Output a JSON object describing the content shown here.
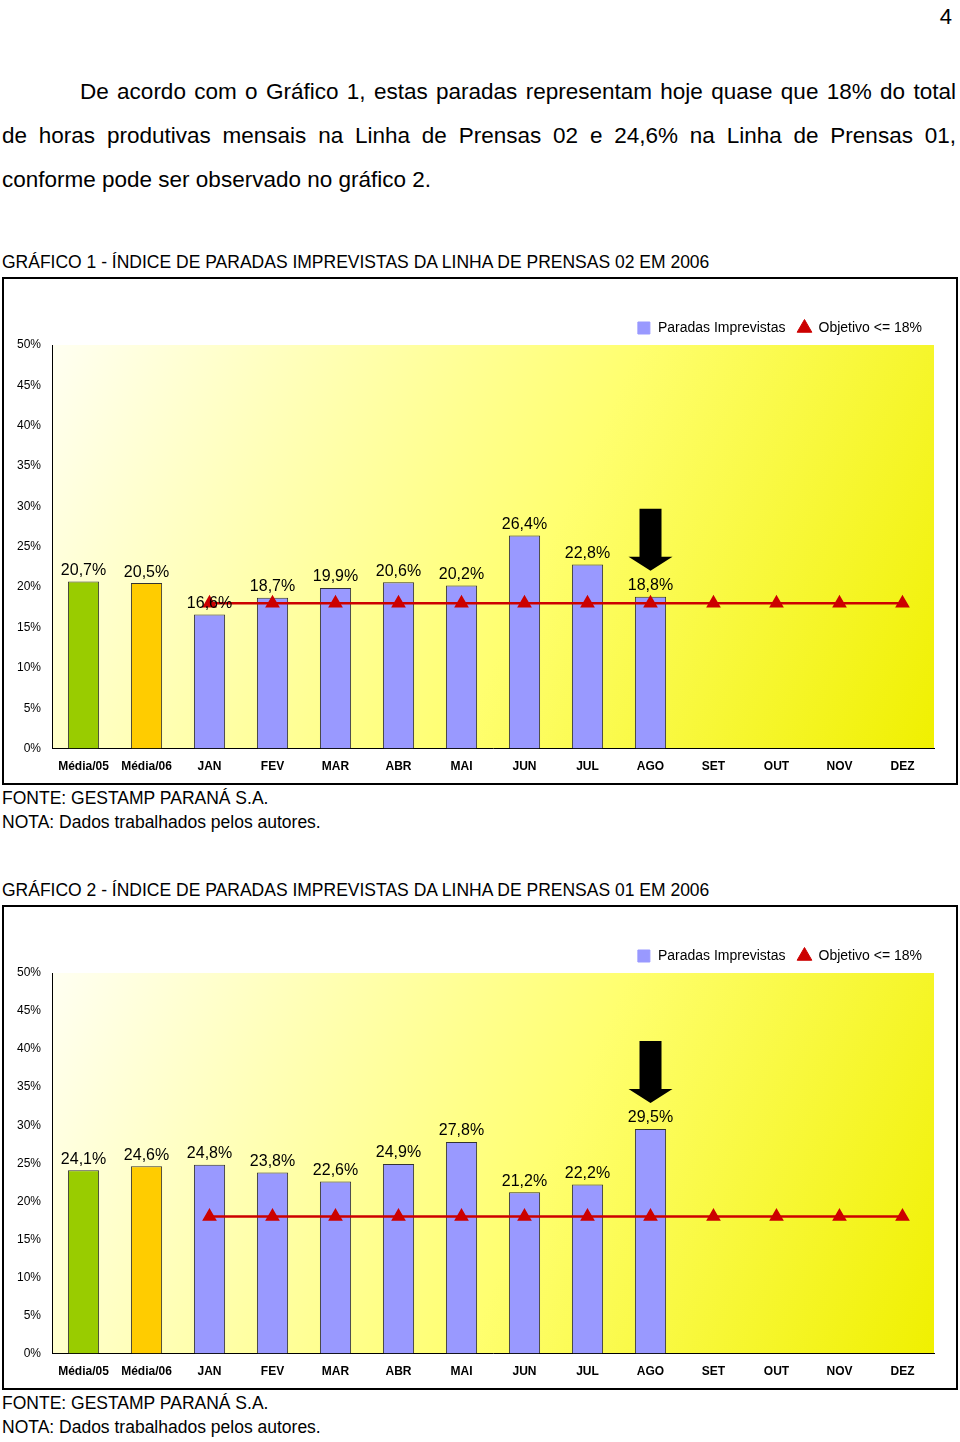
{
  "page_number": "4",
  "paragraph": "De acordo com o Gráfico 1, estas paradas representam hoje quase que 18% do total de horas produtivas mensais na Linha de Prensas 02 e 24,6% na Linha de Prensas 01, conforme pode ser observado no gráfico 2.",
  "chart_data": [
    {
      "type": "bar",
      "title": "GRÁFICO 1 - ÍNDICE DE PARADAS IMPREVISTAS DA LINHA DE PRENSAS 02 EM 2006",
      "source": "FONTE: GESTAMP PARANÁ S.A.",
      "note": "NOTA: Dados trabalhados pelos autores.",
      "categories": [
        "Média/05",
        "Média/06",
        "JAN",
        "FEV",
        "MAR",
        "ABR",
        "MAI",
        "JUN",
        "JUL",
        "AGO",
        "SET",
        "OUT",
        "NOV",
        "DEZ"
      ],
      "series": [
        {
          "name": "Paradas Imprevistas",
          "type": "bar",
          "color": "#9999ff",
          "colors": [
            "#99cc00",
            "#ffcc00",
            "#9999ff",
            "#9999ff",
            "#9999ff",
            "#9999ff",
            "#9999ff",
            "#9999ff",
            "#9999ff",
            "#9999ff",
            "#9999ff",
            "#9999ff",
            "#9999ff",
            "#9999ff"
          ],
          "values": [
            20.7,
            20.5,
            16.6,
            18.7,
            19.9,
            20.6,
            20.2,
            26.4,
            22.8,
            18.8,
            null,
            null,
            null,
            null
          ],
          "value_labels": [
            "20,7%",
            "20,5%",
            "16,6%",
            "18,7%",
            "19,9%",
            "20,6%",
            "20,2%",
            "26,4%",
            "22,8%",
            "18,8%",
            null,
            null,
            null,
            null
          ]
        },
        {
          "name": "Objetivo <= 18%",
          "type": "line",
          "color": "#cc0000",
          "marker": "triangle",
          "values": [
            null,
            null,
            18,
            18,
            18,
            18,
            18,
            18,
            18,
            18,
            18,
            18,
            18,
            18
          ]
        }
      ],
      "ylim": [
        0,
        50
      ],
      "yticks": [
        {
          "value": 0,
          "label": "0%"
        },
        {
          "value": 5,
          "label": "5%"
        },
        {
          "value": 10,
          "label": "10%"
        },
        {
          "value": 15,
          "label": "15%"
        },
        {
          "value": 20,
          "label": "20%"
        },
        {
          "value": 25,
          "label": "25%"
        },
        {
          "value": 30,
          "label": "30%"
        },
        {
          "value": 35,
          "label": "35%"
        },
        {
          "value": 40,
          "label": "40%"
        },
        {
          "value": 45,
          "label": "45%"
        },
        {
          "value": 50,
          "label": "50%"
        }
      ],
      "grid": false,
      "legend": "upper right",
      "data_labels": true
    },
    {
      "type": "bar",
      "title": "GRÁFICO 2 - ÍNDICE DE PARADAS IMPREVISTAS DA LINHA DE PRENSAS 01 EM 2006",
      "source": "FONTE: GESTAMP PARANÁ S.A.",
      "note": "NOTA: Dados trabalhados pelos autores.",
      "categories": [
        "Média/05",
        "Média/06",
        "JAN",
        "FEV",
        "MAR",
        "ABR",
        "MAI",
        "JUN",
        "JUL",
        "AGO",
        "SET",
        "OUT",
        "NOV",
        "DEZ"
      ],
      "series": [
        {
          "name": "Paradas Imprevistas",
          "type": "bar",
          "color": "#9999ff",
          "colors": [
            "#99cc00",
            "#ffcc00",
            "#9999ff",
            "#9999ff",
            "#9999ff",
            "#9999ff",
            "#9999ff",
            "#9999ff",
            "#9999ff",
            "#9999ff",
            "#9999ff",
            "#9999ff",
            "#9999ff",
            "#9999ff"
          ],
          "values": [
            24.1,
            24.6,
            24.8,
            23.8,
            22.6,
            24.9,
            27.8,
            21.2,
            22.2,
            29.5,
            null,
            null,
            null,
            null
          ],
          "value_labels": [
            "24,1%",
            "24,6%",
            "24,8%",
            "23,8%",
            "22,6%",
            "24,9%",
            "27,8%",
            "21,2%",
            "22,2%",
            "29,5%",
            null,
            null,
            null,
            null
          ]
        },
        {
          "name": "Objetivo <= 18%",
          "type": "line",
          "color": "#cc0000",
          "marker": "triangle",
          "values": [
            null,
            null,
            18,
            18,
            18,
            18,
            18,
            18,
            18,
            18,
            18,
            18,
            18,
            18
          ]
        }
      ],
      "ylim": [
        0,
        50
      ],
      "yticks": [
        {
          "value": 0,
          "label": "0%"
        },
        {
          "value": 5,
          "label": "5%"
        },
        {
          "value": 10,
          "label": "10%"
        },
        {
          "value": 15,
          "label": "15%"
        },
        {
          "value": 20,
          "label": "20%"
        },
        {
          "value": 25,
          "label": "25%"
        },
        {
          "value": 30,
          "label": "30%"
        },
        {
          "value": 35,
          "label": "35%"
        },
        {
          "value": 40,
          "label": "40%"
        },
        {
          "value": 45,
          "label": "45%"
        },
        {
          "value": 50,
          "label": "50%"
        }
      ],
      "grid": false,
      "legend": "upper right",
      "data_labels": true
    }
  ]
}
